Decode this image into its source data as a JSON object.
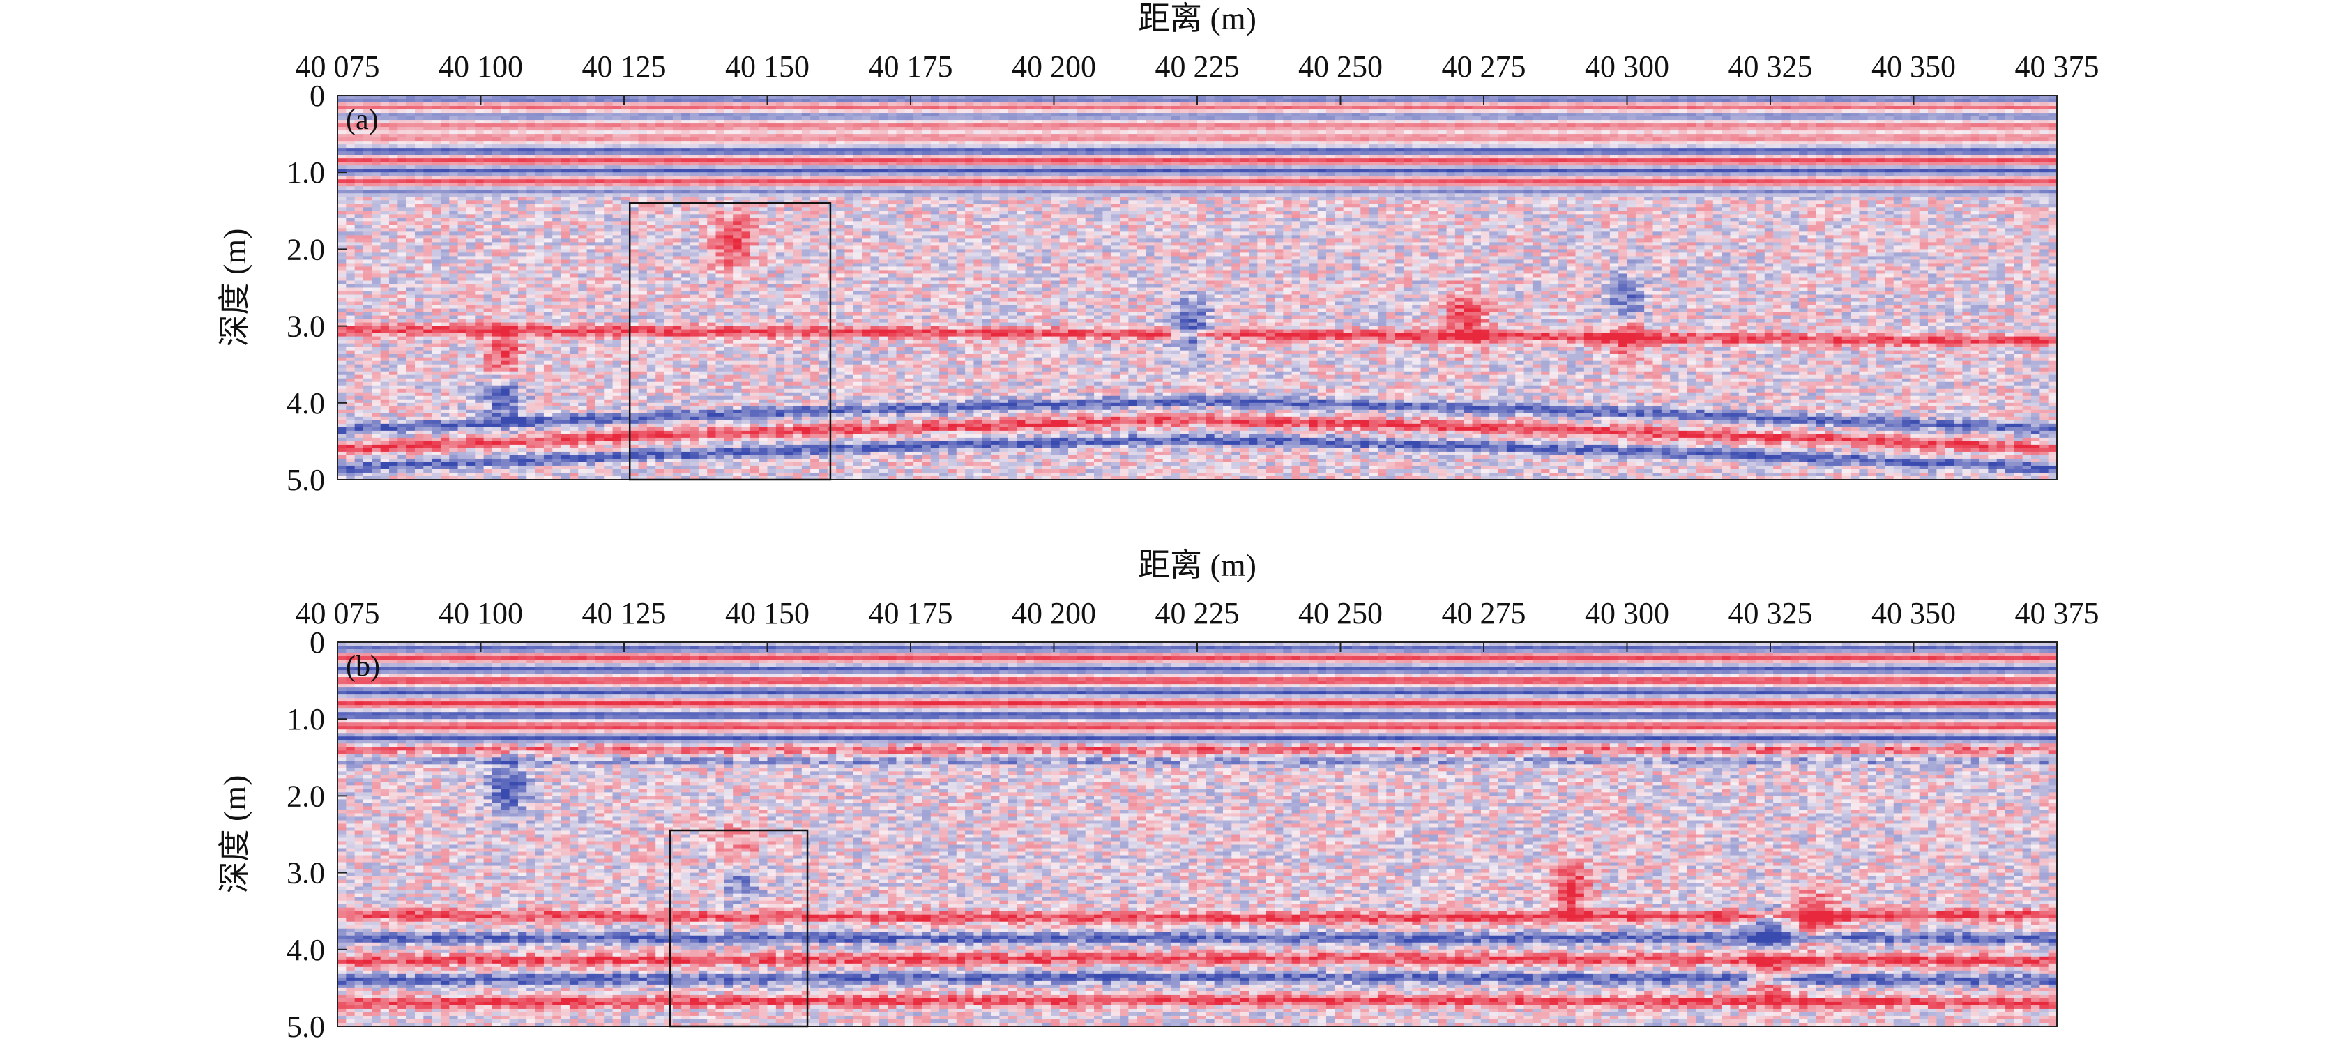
{
  "chart_data": [
    {
      "type": "heatmap",
      "panel_label": "(a)",
      "title": "",
      "xlabel": "距离 (m)",
      "ylabel": "深度 (m)",
      "xlim": [
        40075,
        40375
      ],
      "ylim": [
        0,
        5.0
      ],
      "y_inverted": true,
      "x_ticks": [
        "40 075",
        "40 100",
        "40 125",
        "40 150",
        "40 175",
        "40 200",
        "40 225",
        "40 250",
        "40 275",
        "40 300",
        "40 325",
        "40 350",
        "40 375"
      ],
      "x_tick_values": [
        40075,
        40100,
        40125,
        40150,
        40175,
        40200,
        40225,
        40250,
        40275,
        40300,
        40325,
        40350,
        40375
      ],
      "y_ticks": [
        "0",
        "1.0",
        "2.0",
        "3.0",
        "4.0",
        "5.0"
      ],
      "y_tick_values": [
        0,
        1.0,
        2.0,
        3.0,
        4.0,
        5.0
      ],
      "grid": false,
      "colors": {
        "positive": "#e8283c",
        "negative": "#3a4bb0",
        "zero": "#f7eef3"
      },
      "highlight_box": {
        "x": [
          40126,
          40161
        ],
        "y": [
          1.4,
          5.0
        ]
      },
      "horizontal_bands": [
        {
          "depth": 0.05,
          "polarity": -1,
          "strength": 0.7
        },
        {
          "depth": 0.15,
          "polarity": 1,
          "strength": 0.6
        },
        {
          "depth": 0.27,
          "polarity": -1,
          "strength": 0.55
        },
        {
          "depth": 0.4,
          "polarity": 1,
          "strength": 0.5
        },
        {
          "depth": 0.55,
          "polarity": 1,
          "strength": 0.45
        },
        {
          "depth": 0.72,
          "polarity": -1,
          "strength": 0.9
        },
        {
          "depth": 0.85,
          "polarity": 1,
          "strength": 0.8
        },
        {
          "depth": 0.98,
          "polarity": -1,
          "strength": 0.9
        },
        {
          "depth": 1.12,
          "polarity": 1,
          "strength": 0.75
        },
        {
          "depth": 1.25,
          "polarity": -1,
          "strength": 0.55
        }
      ],
      "deep_reflectors": [
        {
          "depth_left": 4.35,
          "depth_mid": 3.85,
          "depth_right": 4.35,
          "polarity": -1
        },
        {
          "depth_left": 4.6,
          "depth_mid": 4.1,
          "depth_right": 4.6,
          "polarity": 1
        },
        {
          "depth_left": 4.85,
          "depth_mid": 4.35,
          "depth_right": 4.85,
          "polarity": -1
        },
        {
          "depth_left": 3.05,
          "depth_mid": 3.1,
          "depth_right": 3.2,
          "polarity": 1
        }
      ],
      "anomalies": [
        {
          "x": 40104,
          "y": 3.4,
          "polarity": 1
        },
        {
          "x": 40104,
          "y": 3.9,
          "polarity": -1
        },
        {
          "x": 40144,
          "y": 1.9,
          "polarity": 1
        },
        {
          "x": 40224,
          "y": 3.0,
          "polarity": -1
        },
        {
          "x": 40272,
          "y": 2.9,
          "polarity": 1
        },
        {
          "x": 40300,
          "y": 2.7,
          "polarity": -1
        },
        {
          "x": 40300,
          "y": 3.1,
          "polarity": 1
        }
      ]
    },
    {
      "type": "heatmap",
      "panel_label": "(b)",
      "title": "",
      "xlabel": "距离 (m)",
      "ylabel": "深度 (m)",
      "xlim": [
        40075,
        40375
      ],
      "ylim": [
        0,
        5.0
      ],
      "y_inverted": true,
      "x_ticks": [
        "40 075",
        "40 100",
        "40 125",
        "40 150",
        "40 175",
        "40 200",
        "40 225",
        "40 250",
        "40 275",
        "40 300",
        "40 325",
        "40 350",
        "40 375"
      ],
      "x_tick_values": [
        40075,
        40100,
        40125,
        40150,
        40175,
        40200,
        40225,
        40250,
        40275,
        40300,
        40325,
        40350,
        40375
      ],
      "y_ticks": [
        "0",
        "1.0",
        "2.0",
        "3.0",
        "4.0",
        "5.0"
      ],
      "y_tick_values": [
        0,
        1.0,
        2.0,
        3.0,
        4.0,
        5.0
      ],
      "grid": false,
      "colors": {
        "positive": "#e8283c",
        "negative": "#3a4bb0",
        "zero": "#f7eef3"
      },
      "highlight_box": {
        "x": [
          40133,
          40157
        ],
        "y": [
          2.45,
          5.0
        ]
      },
      "horizontal_bands": [
        {
          "depth": 0.08,
          "polarity": -1,
          "strength": 0.8
        },
        {
          "depth": 0.2,
          "polarity": 1,
          "strength": 0.8
        },
        {
          "depth": 0.35,
          "polarity": -1,
          "strength": 0.9
        },
        {
          "depth": 0.5,
          "polarity": 1,
          "strength": 0.85
        },
        {
          "depth": 0.65,
          "polarity": -1,
          "strength": 0.95
        },
        {
          "depth": 0.8,
          "polarity": 1,
          "strength": 0.9
        },
        {
          "depth": 0.95,
          "polarity": -1,
          "strength": 0.95
        },
        {
          "depth": 1.1,
          "polarity": 1,
          "strength": 0.85
        },
        {
          "depth": 1.25,
          "polarity": -1,
          "strength": 0.9
        },
        {
          "depth": 1.4,
          "polarity": 1,
          "strength": 0.7
        },
        {
          "depth": 1.55,
          "polarity": -1,
          "strength": 0.5
        }
      ],
      "deep_reflectors": [
        {
          "depth_left": 3.55,
          "depth_mid": 3.6,
          "depth_right": 3.55,
          "polarity": 1
        },
        {
          "depth_left": 3.85,
          "depth_mid": 3.85,
          "depth_right": 3.85,
          "polarity": -1
        },
        {
          "depth_left": 4.15,
          "depth_mid": 4.1,
          "depth_right": 4.15,
          "polarity": 1
        },
        {
          "depth_left": 4.4,
          "depth_mid": 4.35,
          "depth_right": 4.4,
          "polarity": -1
        },
        {
          "depth_left": 4.7,
          "depth_mid": 4.65,
          "depth_right": 4.7,
          "polarity": 1
        }
      ],
      "anomalies": [
        {
          "x": 40105,
          "y": 1.9,
          "polarity": -1
        },
        {
          "x": 40145,
          "y": 2.75,
          "polarity": 1
        },
        {
          "x": 40145,
          "y": 3.0,
          "polarity": -1
        },
        {
          "x": 40290,
          "y": 3.2,
          "polarity": 1
        },
        {
          "x": 40325,
          "y": 3.8,
          "polarity": -1
        },
        {
          "x": 40325,
          "y": 4.3,
          "polarity": 1
        },
        {
          "x": 40333,
          "y": 3.6,
          "polarity": 1
        }
      ]
    }
  ]
}
